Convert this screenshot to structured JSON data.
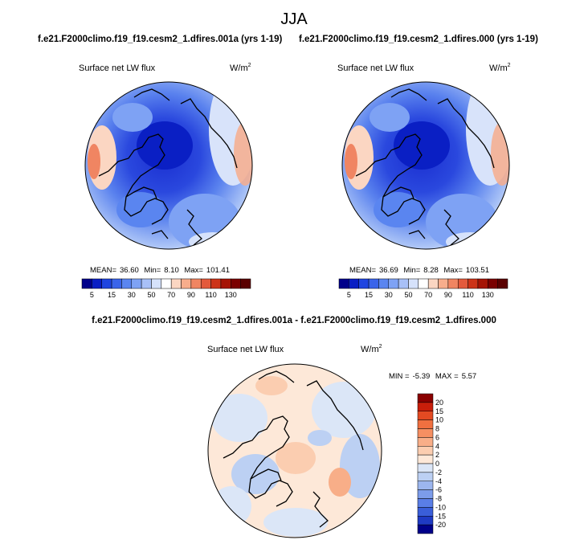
{
  "title": "JJA",
  "panels": [
    {
      "run_title": "f.e21.F2000climo.f19_f19.cesm2_1.dfires.001a (yrs 1-19)",
      "label": "Surface net LW flux",
      "units_base": "W/m",
      "units_exp": "2",
      "stats": {
        "mean_label": "MEAN=",
        "mean": "36.60",
        "min_label": "Min=",
        "min": "8.10",
        "max_label": "Max=",
        "max": "101.41"
      }
    },
    {
      "run_title": "f.e21.F2000climo.f19_f19.cesm2_1.dfires.000 (yrs 1-19)",
      "label": "Surface net LW flux",
      "units_base": "W/m",
      "units_exp": "2",
      "stats": {
        "mean_label": "MEAN=",
        "mean": "36.69",
        "min_label": "Min=",
        "min": "8.28",
        "max_label": "Max=",
        "max": "103.51"
      }
    }
  ],
  "difference": {
    "title": "f.e21.F2000climo.f19_f19.cesm2_1.dfires.001a - f.e21.F2000climo.f19_f19.cesm2_1.dfires.000",
    "label": "Surface net LW flux",
    "units_base": "W/m",
    "units_exp": "2",
    "stats": {
      "min_label": "MIN =",
      "min": "-5.39",
      "max_label": "MAX =",
      "max": "5.57"
    }
  },
  "chart_data": [
    {
      "type": "heatmap",
      "projection": "north-polar-stereographic",
      "title": "Surface net LW flux",
      "units": "W/m2",
      "colorbar": {
        "orientation": "horizontal",
        "levels": [
          5,
          10,
          15,
          20,
          25,
          30,
          40,
          50,
          60,
          70,
          80,
          90,
          100,
          110,
          120,
          130
        ],
        "tick_labels": [
          "5",
          "15",
          "30",
          "50",
          "70",
          "90",
          "110",
          "130"
        ],
        "colors": [
          "#00008a",
          "#0a1fc4",
          "#1f45e0",
          "#3a64ea",
          "#5a85f0",
          "#7ea2f4",
          "#a8c0f7",
          "#d6e2fb",
          "#ffffff",
          "#fbd6c2",
          "#f7ad8c",
          "#f08562",
          "#e35a3c",
          "#cc3318",
          "#a51405",
          "#7a0000",
          "#5a0000"
        ]
      },
      "stats": {
        "mean": 36.6,
        "min": 8.1,
        "max": 101.41
      }
    },
    {
      "type": "heatmap",
      "projection": "north-polar-stereographic",
      "title": "Surface net LW flux",
      "units": "W/m2",
      "colorbar": {
        "orientation": "horizontal",
        "levels": [
          5,
          10,
          15,
          20,
          25,
          30,
          40,
          50,
          60,
          70,
          80,
          90,
          100,
          110,
          120,
          130
        ],
        "tick_labels": [
          "5",
          "15",
          "30",
          "50",
          "70",
          "90",
          "110",
          "130"
        ],
        "colors": [
          "#00008a",
          "#0a1fc4",
          "#1f45e0",
          "#3a64ea",
          "#5a85f0",
          "#7ea2f4",
          "#a8c0f7",
          "#d6e2fb",
          "#ffffff",
          "#fbd6c2",
          "#f7ad8c",
          "#f08562",
          "#e35a3c",
          "#cc3318",
          "#a51405",
          "#7a0000",
          "#5a0000"
        ]
      },
      "stats": {
        "mean": 36.69,
        "min": 8.28,
        "max": 103.51
      }
    },
    {
      "type": "heatmap",
      "projection": "north-polar-stereographic",
      "title": "Surface net LW flux",
      "units": "W/m2",
      "colorbar": {
        "orientation": "vertical",
        "levels": [
          -20,
          -15,
          -10,
          -8,
          -6,
          -4,
          -2,
          0,
          2,
          4,
          6,
          8,
          10,
          15,
          20
        ],
        "tick_labels": [
          "20",
          "15",
          "10",
          "8",
          "6",
          "4",
          "2",
          "0",
          "-2",
          "-4",
          "-6",
          "-8",
          "-10",
          "-15",
          "-20"
        ],
        "colors": [
          "#8a0000",
          "#c81e0a",
          "#e34a22",
          "#f07040",
          "#f58f62",
          "#f8ae88",
          "#fbcdb0",
          "#fde8d8",
          "#dbe6f7",
          "#bcd0f3",
          "#9cb6ee",
          "#7c9cea",
          "#5a7ee6",
          "#3a5ed9",
          "#1f3ac4",
          "#00008a"
        ]
      },
      "stats": {
        "min": -5.39,
        "max": 5.57
      }
    }
  ]
}
